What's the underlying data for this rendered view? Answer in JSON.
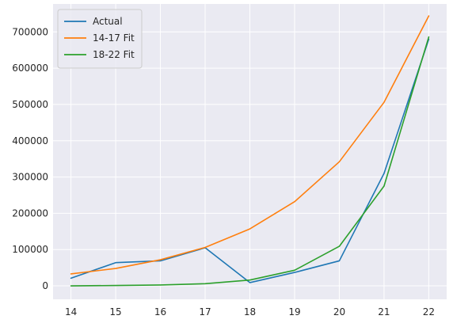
{
  "chart_data": {
    "type": "line",
    "title": "",
    "xlabel": "",
    "ylabel": "",
    "x": [
      14,
      15,
      16,
      17,
      18,
      19,
      20,
      21,
      22
    ],
    "xlim": [
      13.6,
      22.4
    ],
    "ylim": [
      -37000,
      777000
    ],
    "xticks": [
      "14",
      "15",
      "16",
      "17",
      "18",
      "19",
      "20",
      "21",
      "22"
    ],
    "yticks": [
      0,
      100000,
      200000,
      300000,
      400000,
      500000,
      600000,
      700000
    ],
    "ytick_labels": [
      "0",
      "100000",
      "200000",
      "300000",
      "400000",
      "500000",
      "600000",
      "700000"
    ],
    "grid": true,
    "background": "#eaeaf2",
    "legend_position": "upper-left",
    "series": [
      {
        "name": "Actual",
        "color": "#1f77b4",
        "values": [
          21000,
          64000,
          69000,
          105000,
          9000,
          37000,
          69000,
          310000,
          680000
        ]
      },
      {
        "name": "14-17 Fit",
        "color": "#ff7f0e",
        "values": [
          33000,
          48000,
          72000,
          106000,
          157000,
          232000,
          342000,
          506000,
          744000
        ]
      },
      {
        "name": "18-22 Fit",
        "color": "#2ca02c",
        "values": [
          0,
          1000,
          2500,
          6000,
          16000,
          43000,
          109000,
          275000,
          686000
        ]
      }
    ]
  }
}
